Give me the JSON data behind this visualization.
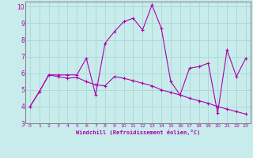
{
  "xlabel": "Windchill (Refroidissement éolien,°C)",
  "bg_color": "#c8ecec",
  "line_color": "#aa00aa",
  "grid_color": "#b0d8d8",
  "spine_color": "#888888",
  "xlim": [
    -0.5,
    23.5
  ],
  "ylim": [
    3,
    10.3
  ],
  "yticks": [
    3,
    4,
    5,
    6,
    7,
    8,
    9,
    10
  ],
  "xticks": [
    0,
    1,
    2,
    3,
    4,
    5,
    6,
    7,
    8,
    9,
    10,
    11,
    12,
    13,
    14,
    15,
    16,
    17,
    18,
    19,
    20,
    21,
    22,
    23
  ],
  "line1_x": [
    0,
    1,
    2,
    3,
    4,
    5,
    6,
    7,
    8,
    9,
    10,
    11,
    12,
    13,
    14,
    15,
    16,
    17,
    18,
    19,
    20,
    21,
    22,
    23
  ],
  "line1_y": [
    4.0,
    4.9,
    5.9,
    5.9,
    5.9,
    5.9,
    6.9,
    4.7,
    7.8,
    8.5,
    9.1,
    9.3,
    8.6,
    10.1,
    8.7,
    5.5,
    4.7,
    6.3,
    6.4,
    6.6,
    3.6,
    7.4,
    5.8,
    6.9
  ],
  "line2_x": [
    0,
    1,
    2,
    3,
    4,
    5,
    6,
    7,
    8,
    9,
    10,
    11,
    12,
    13,
    14,
    15,
    16,
    17,
    18,
    19,
    20,
    21,
    22,
    23
  ],
  "line2_y": [
    4.0,
    4.9,
    5.9,
    5.8,
    5.7,
    5.75,
    5.5,
    5.3,
    5.25,
    5.8,
    5.7,
    5.55,
    5.4,
    5.25,
    5.0,
    4.85,
    4.7,
    4.5,
    4.35,
    4.2,
    4.0,
    3.85,
    3.7,
    3.55
  ]
}
